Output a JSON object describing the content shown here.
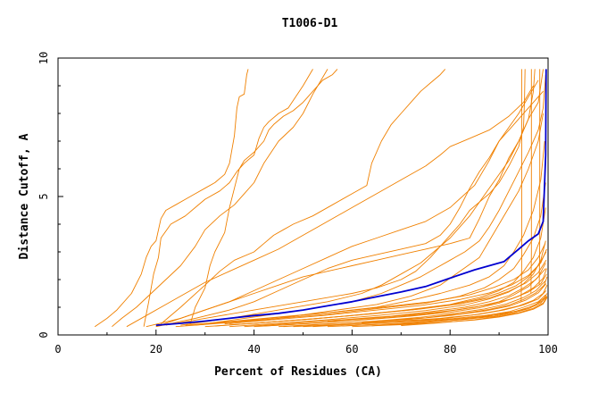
{
  "chart_data": {
    "type": "line",
    "title": "T1006-D1",
    "xlabel": "Percent of Residues (CA)",
    "ylabel": "Distance Cutoff, A",
    "xlim": [
      0,
      100
    ],
    "ylim": [
      0,
      10
    ],
    "xticks": [
      "0",
      "20",
      "40",
      "60",
      "80",
      "100"
    ],
    "yticks": [
      "0",
      "5",
      "10"
    ],
    "grid": false,
    "colors": {
      "models": "#f08000",
      "highlight": "#0000d0"
    },
    "highlight": {
      "x": [
        20,
        25,
        30,
        35,
        40,
        45,
        50,
        55,
        60,
        65,
        70,
        75,
        80,
        85,
        88,
        91,
        92,
        94,
        96,
        98,
        99,
        99.5,
        99.6
      ],
      "y": [
        0.35,
        0.42,
        0.5,
        0.6,
        0.7,
        0.78,
        0.9,
        1.05,
        1.2,
        1.38,
        1.55,
        1.75,
        2.05,
        2.35,
        2.5,
        2.65,
        2.8,
        3.1,
        3.4,
        3.65,
        4.1,
        6.5,
        9.6
      ]
    },
    "series": [
      {
        "x": [
          7.5,
          10,
          12,
          15,
          17,
          18,
          19,
          20,
          21,
          22,
          24,
          26,
          28,
          30,
          32,
          34,
          35,
          36,
          36.5,
          37,
          38,
          38.5,
          38.8
        ],
        "y": [
          0.3,
          0.6,
          0.9,
          1.5,
          2.2,
          2.8,
          3.2,
          3.4,
          4.2,
          4.5,
          4.7,
          4.9,
          5.1,
          5.3,
          5.5,
          5.8,
          6.2,
          7.2,
          8.2,
          8.6,
          8.7,
          9.4,
          9.6
        ]
      },
      {
        "x": [
          17.5,
          18.5,
          19.5,
          20.5,
          21,
          23,
          26,
          28,
          30,
          33,
          35,
          36.5,
          38,
          40,
          41,
          42,
          43,
          45,
          47,
          50,
          52
        ],
        "y": [
          0.3,
          1.2,
          2.2,
          2.8,
          3.5,
          4.0,
          4.3,
          4.6,
          4.9,
          5.2,
          5.5,
          5.9,
          6.2,
          6.5,
          7.1,
          7.5,
          7.7,
          8.0,
          8.2,
          9.0,
          9.6
        ]
      },
      {
        "x": [
          27,
          28,
          30,
          31,
          32,
          34,
          35,
          36,
          37,
          38,
          40,
          42,
          43,
          44,
          46,
          48,
          50,
          52,
          54,
          56,
          57
        ],
        "y": [
          0.4,
          1.0,
          1.7,
          2.5,
          3.0,
          3.7,
          4.6,
          5.3,
          6.0,
          6.3,
          6.6,
          7.0,
          7.4,
          7.6,
          7.9,
          8.1,
          8.4,
          8.8,
          9.2,
          9.4,
          9.6
        ]
      },
      {
        "x": [
          11,
          13,
          16,
          19,
          22,
          25,
          28,
          30,
          33,
          36,
          38,
          40,
          42,
          45,
          48,
          50,
          52,
          55
        ],
        "y": [
          0.3,
          0.6,
          1.0,
          1.5,
          2.0,
          2.5,
          3.2,
          3.8,
          4.3,
          4.7,
          5.1,
          5.5,
          6.2,
          7.0,
          7.5,
          8.0,
          8.7,
          9.6
        ]
      },
      {
        "x": [
          21,
          25,
          30,
          33,
          36,
          40,
          42,
          44,
          46,
          48,
          52,
          56,
          60,
          63,
          64,
          66,
          68,
          70,
          72,
          74,
          76,
          78,
          79
        ],
        "y": [
          0.4,
          1.0,
          1.8,
          2.3,
          2.7,
          3.0,
          3.3,
          3.6,
          3.8,
          4.0,
          4.3,
          4.7,
          5.1,
          5.4,
          6.2,
          7.0,
          7.6,
          8.0,
          8.4,
          8.8,
          9.1,
          9.4,
          9.6
        ]
      },
      {
        "x": [
          14,
          18,
          22,
          26,
          30,
          35,
          40,
          45,
          50,
          55,
          60,
          65,
          70,
          75,
          78,
          80,
          84,
          88,
          92,
          95,
          97
        ],
        "y": [
          0.3,
          0.7,
          1.1,
          1.5,
          1.9,
          2.3,
          2.7,
          3.1,
          3.6,
          4.1,
          4.6,
          5.1,
          5.6,
          6.1,
          6.5,
          6.8,
          7.1,
          7.4,
          7.9,
          8.4,
          9.0
        ]
      },
      {
        "x": [
          20,
          25,
          30,
          35,
          40,
          45,
          50,
          55,
          60,
          65,
          70,
          75,
          80,
          85,
          88,
          90,
          92,
          94,
          96,
          98
        ],
        "y": [
          0.3,
          0.6,
          0.9,
          1.2,
          1.6,
          2.0,
          2.4,
          2.8,
          3.2,
          3.5,
          3.8,
          4.1,
          4.6,
          5.4,
          6.3,
          7.0,
          7.5,
          8.0,
          8.6,
          9.2
        ]
      },
      {
        "x": [
          20,
          28,
          35,
          40,
          45,
          50,
          55,
          60,
          65,
          70,
          75,
          78,
          80,
          82,
          84,
          86,
          88,
          90,
          93,
          96,
          99
        ],
        "y": [
          0.3,
          0.6,
          0.9,
          1.2,
          1.6,
          2.0,
          2.4,
          2.7,
          2.9,
          3.1,
          3.3,
          3.6,
          4.0,
          4.6,
          5.3,
          5.9,
          6.4,
          7.0,
          7.6,
          8.2,
          8.8
        ]
      },
      {
        "x": [
          18,
          25,
          30,
          35,
          40,
          45,
          50,
          55,
          60,
          65,
          70,
          75,
          80,
          84,
          86,
          88,
          90,
          92,
          94,
          96,
          98,
          99
        ],
        "y": [
          0.3,
          0.6,
          0.9,
          1.2,
          1.5,
          1.8,
          2.1,
          2.3,
          2.5,
          2.7,
          2.9,
          3.1,
          3.3,
          3.5,
          4.2,
          5.0,
          5.6,
          6.4,
          7.0,
          7.8,
          8.4,
          9.6
        ]
      },
      {
        "x": [
          22,
          30,
          40,
          50,
          60,
          65,
          70,
          73,
          76,
          78,
          80,
          82,
          84,
          86,
          88,
          90,
          92,
          94,
          95,
          95.2,
          95.3
        ],
        "y": [
          0.35,
          0.6,
          0.9,
          1.2,
          1.5,
          1.7,
          2.0,
          2.3,
          2.8,
          3.2,
          3.6,
          4.0,
          4.5,
          4.8,
          5.1,
          5.5,
          6.1,
          6.8,
          7.5,
          8.5,
          9.6
        ]
      },
      {
        "x": [
          25,
          35,
          45,
          55,
          62,
          66,
          70,
          74,
          76,
          78,
          80,
          82,
          84,
          86,
          88,
          90,
          92,
          94,
          96,
          97,
          97.3
        ],
        "y": [
          0.35,
          0.6,
          0.9,
          1.2,
          1.5,
          1.8,
          2.2,
          2.6,
          2.9,
          3.2,
          3.5,
          3.9,
          4.3,
          4.8,
          5.3,
          5.8,
          6.3,
          7.0,
          7.8,
          8.8,
          9.6
        ]
      },
      {
        "x": [
          30,
          40,
          50,
          60,
          66,
          70,
          74,
          77,
          80,
          83,
          86,
          88,
          90,
          92,
          94,
          96,
          98,
          99,
          99.5
        ],
        "y": [
          0.4,
          0.65,
          0.9,
          1.2,
          1.5,
          1.8,
          2.1,
          2.4,
          2.7,
          3.0,
          3.4,
          3.9,
          4.5,
          5.2,
          5.9,
          6.6,
          7.4,
          8.2,
          9.4
        ]
      },
      {
        "x": [
          35,
          45,
          55,
          65,
          72,
          78,
          82,
          86,
          88,
          90,
          92,
          94,
          96,
          98,
          99
        ],
        "y": [
          0.4,
          0.6,
          0.85,
          1.1,
          1.4,
          1.8,
          2.3,
          2.8,
          3.4,
          4.0,
          4.6,
          5.2,
          6.0,
          7.0,
          8.0
        ]
      },
      {
        "x": [
          28,
          40,
          55,
          65,
          72,
          78,
          84,
          88,
          91,
          93,
          95,
          97,
          98.5,
          99.3
        ],
        "y": [
          0.35,
          0.55,
          0.8,
          1.0,
          1.25,
          1.5,
          1.8,
          2.1,
          2.5,
          3.0,
          3.6,
          4.5,
          5.6,
          7.0
        ]
      },
      {
        "x": [
          24,
          35,
          45,
          55,
          65,
          75,
          82,
          87,
          90,
          93,
          95,
          97,
          98.5,
          99.5
        ],
        "y": [
          0.3,
          0.45,
          0.6,
          0.75,
          0.95,
          1.15,
          1.4,
          1.7,
          2.0,
          2.4,
          2.9,
          3.5,
          4.3,
          5.5
        ]
      },
      {
        "x": [
          30,
          40,
          50,
          60,
          70,
          80,
          86,
          90,
          93,
          95,
          97,
          98.5,
          99.5
        ],
        "y": [
          0.3,
          0.42,
          0.55,
          0.7,
          0.88,
          1.1,
          1.35,
          1.6,
          1.9,
          2.3,
          2.8,
          3.5,
          4.6
        ]
      },
      {
        "x": [
          35,
          45,
          55,
          65,
          75,
          83,
          88,
          92,
          95,
          97,
          98.5,
          99.5
        ],
        "y": [
          0.3,
          0.42,
          0.55,
          0.7,
          0.88,
          1.08,
          1.3,
          1.55,
          1.85,
          2.2,
          2.7,
          3.4
        ]
      },
      {
        "x": [
          40,
          50,
          60,
          70,
          78,
          85,
          90,
          93,
          96,
          98,
          99.5
        ],
        "y": [
          0.3,
          0.4,
          0.52,
          0.66,
          0.82,
          1.0,
          1.2,
          1.45,
          1.75,
          2.1,
          2.6
        ]
      },
      {
        "x": [
          42,
          52,
          62,
          72,
          80,
          86,
          90,
          94,
          97,
          99,
          99.7
        ],
        "y": [
          0.32,
          0.42,
          0.54,
          0.68,
          0.82,
          0.98,
          1.15,
          1.4,
          1.7,
          2.05,
          2.4
        ]
      },
      {
        "x": [
          45,
          55,
          65,
          75,
          82,
          88,
          92,
          95,
          97.5,
          99.2,
          99.8
        ],
        "y": [
          0.3,
          0.4,
          0.5,
          0.62,
          0.76,
          0.92,
          1.08,
          1.28,
          1.52,
          1.8,
          2.1
        ]
      },
      {
        "x": [
          48,
          58,
          68,
          78,
          85,
          90,
          94,
          97,
          99,
          99.8
        ],
        "y": [
          0.3,
          0.38,
          0.48,
          0.6,
          0.73,
          0.88,
          1.05,
          1.25,
          1.5,
          1.8
        ]
      },
      {
        "x": [
          50,
          60,
          70,
          80,
          87,
          92,
          95,
          98,
          99.5
        ],
        "y": [
          0.3,
          0.38,
          0.47,
          0.58,
          0.7,
          0.84,
          1.0,
          1.2,
          1.45
        ]
      },
      {
        "x": [
          55,
          65,
          75,
          83,
          89,
          93,
          96,
          98.5,
          99.7
        ],
        "y": [
          0.3,
          0.38,
          0.46,
          0.56,
          0.67,
          0.8,
          0.95,
          1.15,
          1.4
        ]
      },
      {
        "x": [
          60,
          70,
          78,
          85,
          90,
          94,
          97,
          99,
          99.8
        ],
        "y": [
          0.3,
          0.37,
          0.45,
          0.54,
          0.65,
          0.78,
          0.93,
          1.12,
          1.35
        ]
      },
      {
        "x": [
          26,
          36,
          46,
          56,
          66,
          76,
          84,
          89,
          93,
          96,
          98,
          99.4
        ],
        "y": [
          0.35,
          0.5,
          0.66,
          0.82,
          1.0,
          1.2,
          1.45,
          1.72,
          2.0,
          2.35,
          2.8,
          3.3
        ]
      },
      {
        "x": [
          32,
          42,
          52,
          62,
          72,
          80,
          86,
          90,
          93.5,
          96,
          98,
          99.6
        ],
        "y": [
          0.32,
          0.45,
          0.58,
          0.74,
          0.9,
          1.08,
          1.3,
          1.52,
          1.78,
          2.1,
          2.5,
          3.0
        ]
      },
      {
        "x": [
          38,
          48,
          58,
          68,
          76,
          83,
          88,
          92,
          95,
          97.5,
          99.5
        ],
        "y": [
          0.3,
          0.42,
          0.55,
          0.68,
          0.84,
          1.0,
          1.2,
          1.42,
          1.7,
          2.0,
          2.4
        ]
      },
      {
        "x": [
          46,
          56,
          66,
          74,
          81,
          87,
          91.5,
          95,
          97.5,
          99.4
        ],
        "y": [
          0.3,
          0.4,
          0.52,
          0.64,
          0.78,
          0.94,
          1.12,
          1.35,
          1.6,
          1.95
        ]
      },
      {
        "x": [
          52,
          62,
          72,
          80,
          86,
          91,
          95,
          98,
          99.6
        ],
        "y": [
          0.3,
          0.4,
          0.5,
          0.62,
          0.75,
          0.9,
          1.08,
          1.3,
          1.6
        ]
      },
      {
        "x": [
          58,
          68,
          76,
          83,
          89,
          93.5,
          96.5,
          98.8,
          99.8
        ],
        "y": [
          0.32,
          0.4,
          0.5,
          0.6,
          0.72,
          0.86,
          1.02,
          1.22,
          1.5
        ]
      },
      {
        "x": [
          64,
          72,
          80,
          86,
          91,
          95,
          97.5,
          99.3
        ],
        "y": [
          0.33,
          0.42,
          0.52,
          0.63,
          0.76,
          0.92,
          1.1,
          1.35
        ]
      },
      {
        "x": [
          70,
          78,
          85,
          90,
          94,
          97,
          99,
          99.8
        ],
        "y": [
          0.34,
          0.44,
          0.55,
          0.67,
          0.8,
          0.96,
          1.15,
          1.4
        ]
      },
      {
        "x": [
          34,
          44,
          54,
          64,
          74,
          82,
          88,
          92.5,
          96,
          98.5,
          99.7
        ],
        "y": [
          0.4,
          0.55,
          0.7,
          0.88,
          1.06,
          1.28,
          1.52,
          1.8,
          2.15,
          2.6,
          3.1
        ]
      },
      {
        "x": [
          40,
          52,
          64,
          74,
          82,
          88,
          92,
          95.5,
          98,
          99.6
        ],
        "y": [
          0.42,
          0.58,
          0.76,
          0.94,
          1.12,
          1.34,
          1.58,
          1.88,
          2.25,
          2.7
        ]
      },
      {
        "x": [
          55,
          65,
          74,
          82,
          88,
          92.5,
          96,
          98.5,
          99.7
        ],
        "y": [
          0.5,
          0.62,
          0.76,
          0.92,
          1.1,
          1.3,
          1.55,
          1.85,
          2.2
        ]
      },
      {
        "x": [
          62,
          72,
          80,
          87,
          92,
          95.5,
          98,
          99.6
        ],
        "y": [
          0.45,
          0.56,
          0.7,
          0.86,
          1.04,
          1.26,
          1.52,
          1.85
        ]
      },
      {
        "x": [
          94.5,
          94.6,
          94.6,
          94.6,
          94.6,
          94.6
        ],
        "y": [
          1.2,
          2.5,
          4.0,
          6.0,
          8.0,
          9.6
        ]
      },
      {
        "x": [
          96.5,
          96.6,
          96.6,
          96.6,
          96.6
        ],
        "y": [
          1.5,
          3.0,
          5.0,
          7.5,
          9.6
        ]
      },
      {
        "x": [
          98.2,
          98.3,
          98.3,
          98.3,
          98.3
        ],
        "y": [
          1.8,
          3.5,
          5.5,
          7.8,
          9.6
        ]
      }
    ]
  }
}
